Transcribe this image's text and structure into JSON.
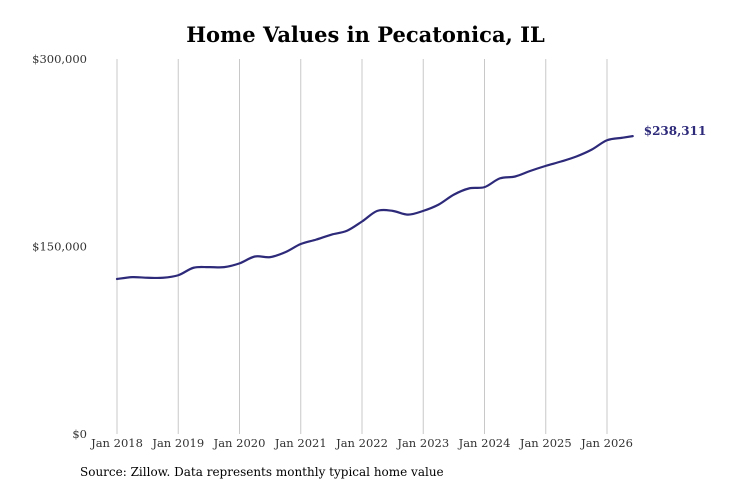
{
  "chart_data": {
    "type": "line",
    "title": "Home Values in Pecatonica, IL",
    "xlabel": "",
    "ylabel": "",
    "ylim": [
      0,
      300000
    ],
    "y_ticks": [
      {
        "value": 0,
        "label": "$0"
      },
      {
        "value": 150000,
        "label": "$150,000"
      },
      {
        "value": 300000,
        "label": "$300,000"
      }
    ],
    "x_ticks": [
      {
        "value": 2018,
        "label": "Jan 2018"
      },
      {
        "value": 2019,
        "label": "Jan 2019"
      },
      {
        "value": 2020,
        "label": "Jan 2020"
      },
      {
        "value": 2021,
        "label": "Jan 2021"
      },
      {
        "value": 2022,
        "label": "Jan 2022"
      },
      {
        "value": 2023,
        "label": "Jan 2023"
      },
      {
        "value": 2024,
        "label": "Jan 2024"
      },
      {
        "value": 2025,
        "label": "Jan 2025"
      },
      {
        "value": 2026,
        "label": "Jan 2026"
      }
    ],
    "grid": "vertical",
    "line_color": "#2e2a7a",
    "grid_color": "#c8c8c8",
    "series": [
      {
        "name": "",
        "x": [
          2018.0,
          2018.25,
          2018.5,
          2018.75,
          2019.0,
          2019.25,
          2019.5,
          2019.75,
          2020.0,
          2020.25,
          2020.5,
          2020.75,
          2021.0,
          2021.25,
          2021.5,
          2021.75,
          2022.0,
          2022.25,
          2022.5,
          2022.75,
          2023.0,
          2023.25,
          2023.5,
          2023.75,
          2024.0,
          2024.25,
          2024.5,
          2024.75,
          2025.0,
          2025.25,
          2025.5,
          2025.75,
          2026.0,
          2026.25,
          2026.42
        ],
        "values": [
          124000,
          125500,
          125000,
          125000,
          127000,
          133000,
          133500,
          133500,
          136500,
          142000,
          141500,
          145500,
          152000,
          155500,
          159500,
          162500,
          170000,
          178500,
          178500,
          175500,
          178500,
          183500,
          191500,
          196500,
          197500,
          204500,
          206000,
          210500,
          214500,
          218000,
          222000,
          227500,
          235000,
          237000,
          238311
        ]
      }
    ],
    "end_label": "$238,311"
  },
  "source": "Source: Zillow. Data represents monthly typical home value"
}
